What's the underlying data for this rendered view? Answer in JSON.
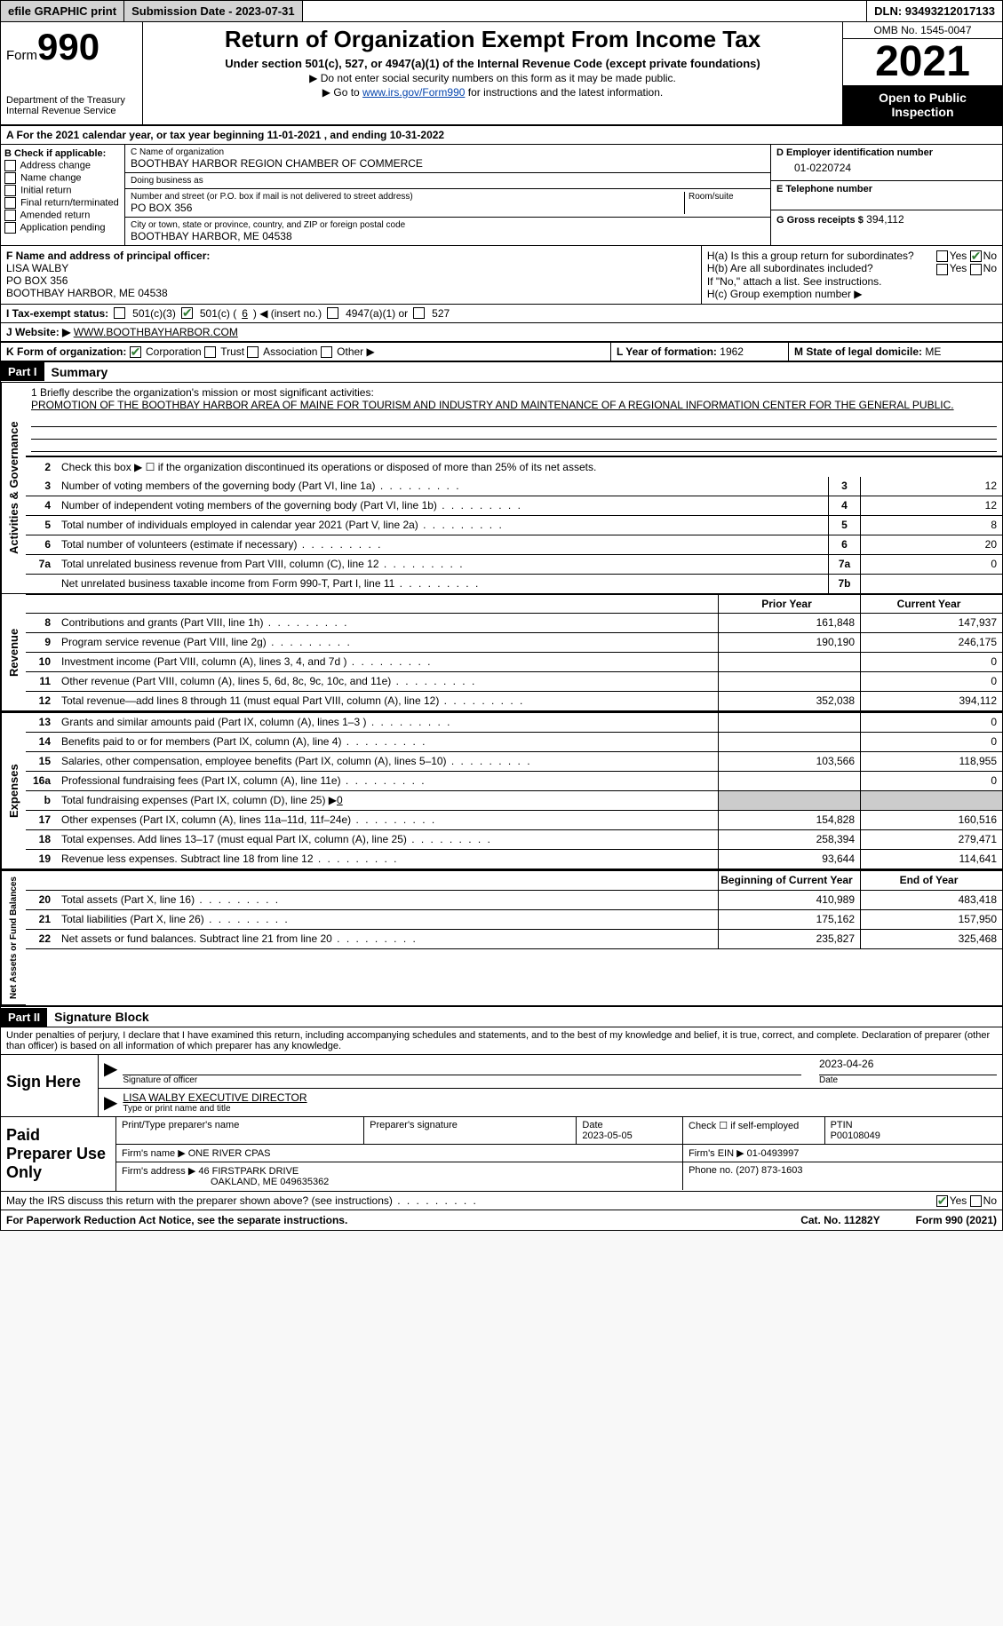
{
  "colors": {
    "bg": "#ffffff",
    "text": "#000000",
    "link": "#0645ad",
    "grey": "#cccccc",
    "btn": "#d3d3d3",
    "check": "#2e7d32"
  },
  "top": {
    "efile": "efile GRAPHIC print",
    "submission_label": "Submission Date - 2023-07-31",
    "dln": "DLN: 93493212017133"
  },
  "header": {
    "form_word": "Form",
    "form_num": "990",
    "dept": "Department of the Treasury\nInternal Revenue Service",
    "title": "Return of Organization Exempt From Income Tax",
    "sub": "Under section 501(c), 527, or 4947(a)(1) of the Internal Revenue Code (except private foundations)",
    "note1": "▶ Do not enter social security numbers on this form as it may be made public.",
    "note2_prefix": "▶ Go to ",
    "note2_link": "www.irs.gov/Form990",
    "note2_suffix": " for instructions and the latest information.",
    "omb": "OMB No. 1545-0047",
    "year": "2021",
    "otp": "Open to Public Inspection"
  },
  "row_a": "A For the 2021 calendar year, or tax year beginning 11-01-2021   , and ending 10-31-2022",
  "box_b": {
    "label": "B Check if applicable:",
    "items": [
      "Address change",
      "Name change",
      "Initial return",
      "Final return/terminated",
      "Amended return",
      "Application pending"
    ]
  },
  "box_c": {
    "name_lbl": "C Name of organization",
    "name": "BOOTHBAY HARBOR REGION CHAMBER OF COMMERCE",
    "dba_lbl": "Doing business as",
    "dba": "",
    "addr_lbl": "Number and street (or P.O. box if mail is not delivered to street address)",
    "room_lbl": "Room/suite",
    "addr": "PO BOX 356",
    "city_lbl": "City or town, state or province, country, and ZIP or foreign postal code",
    "city": "BOOTHBAY HARBOR, ME  04538"
  },
  "box_d": {
    "lbl": "D Employer identification number",
    "val": "01-0220724"
  },
  "box_e": {
    "lbl": "E Telephone number",
    "val": ""
  },
  "box_g": {
    "lbl": "G Gross receipts $",
    "val": "394,112"
  },
  "box_f": {
    "lbl": "F Name and address of principal officer:",
    "name": "LISA WALBY",
    "addr1": "PO BOX 356",
    "addr2": "BOOTHBAY HARBOR, ME  04538"
  },
  "box_h": {
    "ha": "H(a)  Is this a group return for subordinates?",
    "hb": "H(b)  Are all subordinates included?",
    "hb_note": "If \"No,\" attach a list. See instructions.",
    "hc": "H(c)  Group exemption number ▶",
    "yes": "Yes",
    "no": "No",
    "ha_ans": "No"
  },
  "row_i": {
    "lbl": "I  Tax-exempt status:",
    "opt1": "501(c)(3)",
    "opt2_pre": "501(c) (",
    "opt2_num": "6",
    "opt2_post": ") ◀ (insert no.)",
    "opt3": "4947(a)(1) or",
    "opt4": "527",
    "checked": "501c"
  },
  "row_j": {
    "lbl": "J  Website: ▶",
    "val": "WWW.BOOTHBAYHARBOR.COM"
  },
  "row_k": {
    "lbl": "K Form of organization:",
    "opts": [
      "Corporation",
      "Trust",
      "Association",
      "Other ▶"
    ],
    "checked": 0
  },
  "row_l": {
    "lbl": "L Year of formation:",
    "val": "1962"
  },
  "row_m": {
    "lbl": "M State of legal domicile:",
    "val": "ME"
  },
  "part1": {
    "hdr": "Part I",
    "title": "Summary"
  },
  "mission": {
    "lbl": "1   Briefly describe the organization's mission or most significant activities:",
    "txt": "PROMOTION OF THE BOOTHBAY HARBOR AREA OF MAINE FOR TOURISM AND INDUSTRY AND MAINTENANCE OF A REGIONAL INFORMATION CENTER FOR THE GENERAL PUBLIC."
  },
  "line2": "Check this box ▶ ☐ if the organization discontinued its operations or disposed of more than 25% of its net assets.",
  "vtabs": {
    "ag": "Activities & Governance",
    "rev": "Revenue",
    "exp": "Expenses",
    "net": "Net Assets or Fund Balances"
  },
  "gov_lines": [
    {
      "n": "3",
      "d": "Number of voting members of the governing body (Part VI, line 1a)",
      "box": "3",
      "v": "12"
    },
    {
      "n": "4",
      "d": "Number of independent voting members of the governing body (Part VI, line 1b)",
      "box": "4",
      "v": "12"
    },
    {
      "n": "5",
      "d": "Total number of individuals employed in calendar year 2021 (Part V, line 2a)",
      "box": "5",
      "v": "8"
    },
    {
      "n": "6",
      "d": "Total number of volunteers (estimate if necessary)",
      "box": "6",
      "v": "20"
    },
    {
      "n": "7a",
      "d": "Total unrelated business revenue from Part VIII, column (C), line 12",
      "box": "7a",
      "v": "0"
    },
    {
      "n": "",
      "d": "Net unrelated business taxable income from Form 990-T, Part I, line 11",
      "box": "7b",
      "v": ""
    }
  ],
  "col_hdrs": {
    "prior": "Prior Year",
    "current": "Current Year",
    "boy": "Beginning of Current Year",
    "eoy": "End of Year"
  },
  "rev_lines": [
    {
      "n": "8",
      "d": "Contributions and grants (Part VIII, line 1h)",
      "p": "161,848",
      "c": "147,937"
    },
    {
      "n": "9",
      "d": "Program service revenue (Part VIII, line 2g)",
      "p": "190,190",
      "c": "246,175"
    },
    {
      "n": "10",
      "d": "Investment income (Part VIII, column (A), lines 3, 4, and 7d )",
      "p": "",
      "c": "0"
    },
    {
      "n": "11",
      "d": "Other revenue (Part VIII, column (A), lines 5, 6d, 8c, 9c, 10c, and 11e)",
      "p": "",
      "c": "0"
    },
    {
      "n": "12",
      "d": "Total revenue—add lines 8 through 11 (must equal Part VIII, column (A), line 12)",
      "p": "352,038",
      "c": "394,112"
    }
  ],
  "exp_lines": [
    {
      "n": "13",
      "d": "Grants and similar amounts paid (Part IX, column (A), lines 1–3 )",
      "p": "",
      "c": "0"
    },
    {
      "n": "14",
      "d": "Benefits paid to or for members (Part IX, column (A), line 4)",
      "p": "",
      "c": "0"
    },
    {
      "n": "15",
      "d": "Salaries, other compensation, employee benefits (Part IX, column (A), lines 5–10)",
      "p": "103,566",
      "c": "118,955"
    },
    {
      "n": "16a",
      "d": "Professional fundraising fees (Part IX, column (A), line 11e)",
      "p": "",
      "c": "0"
    },
    {
      "n": "b",
      "d": "Total fundraising expenses (Part IX, column (D), line 25) ▶",
      "inline_val": "0",
      "p": "GREY",
      "c": "GREY"
    },
    {
      "n": "17",
      "d": "Other expenses (Part IX, column (A), lines 11a–11d, 11f–24e)",
      "p": "154,828",
      "c": "160,516"
    },
    {
      "n": "18",
      "d": "Total expenses. Add lines 13–17 (must equal Part IX, column (A), line 25)",
      "p": "258,394",
      "c": "279,471"
    },
    {
      "n": "19",
      "d": "Revenue less expenses. Subtract line 18 from line 12",
      "p": "93,644",
      "c": "114,641"
    }
  ],
  "net_lines": [
    {
      "n": "20",
      "d": "Total assets (Part X, line 16)",
      "p": "410,989",
      "c": "483,418"
    },
    {
      "n": "21",
      "d": "Total liabilities (Part X, line 26)",
      "p": "175,162",
      "c": "157,950"
    },
    {
      "n": "22",
      "d": "Net assets or fund balances. Subtract line 21 from line 20",
      "p": "235,827",
      "c": "325,468"
    }
  ],
  "part2": {
    "hdr": "Part II",
    "title": "Signature Block"
  },
  "penalties": "Under penalties of perjury, I declare that I have examined this return, including accompanying schedules and statements, and to the best of my knowledge and belief, it is true, correct, and complete. Declaration of preparer (other than officer) is based on all information of which preparer has any knowledge.",
  "sign": {
    "label": "Sign Here",
    "sig_lbl": "Signature of officer",
    "date": "2023-04-26",
    "date_lbl": "Date",
    "name": "LISA WALBY EXECUTIVE DIRECTOR",
    "name_lbl": "Type or print name and title"
  },
  "ppu": {
    "label": "Paid Preparer Use Only",
    "col1": "Print/Type preparer's name",
    "col2": "Preparer's signature",
    "col3_lbl": "Date",
    "col3_val": "2023-05-05",
    "col4": "Check ☐ if self-employed",
    "col5_lbl": "PTIN",
    "col5_val": "P00108049",
    "firm_lbl": "Firm's name    ▶",
    "firm": "ONE RIVER CPAS",
    "ein_lbl": "Firm's EIN ▶",
    "ein": "01-0493997",
    "addr_lbl": "Firm's address ▶",
    "addr1": "46 FIRSTPARK DRIVE",
    "addr2": "OAKLAND, ME  049635362",
    "phone_lbl": "Phone no.",
    "phone": "(207) 873-1603"
  },
  "discuss": {
    "q": "May the IRS discuss this return with the preparer shown above? (see instructions)",
    "yes": "Yes",
    "no": "No",
    "ans": "Yes"
  },
  "bottom": {
    "pra": "For Paperwork Reduction Act Notice, see the separate instructions.",
    "cat": "Cat. No. 11282Y",
    "form": "Form 990 (2021)"
  }
}
